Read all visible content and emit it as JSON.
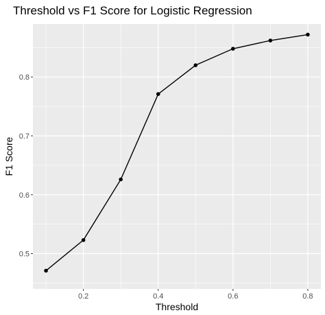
{
  "chart_data": {
    "type": "line",
    "title": "Threshold vs F1 Score for Logistic Regression",
    "xlabel": "Threshold",
    "ylabel": "F1 Score",
    "x": [
      0.1,
      0.2,
      0.3,
      0.4,
      0.5,
      0.6,
      0.7,
      0.8
    ],
    "series": [
      {
        "values": [
          0.471,
          0.523,
          0.626,
          0.771,
          0.82,
          0.848,
          0.862,
          0.872
        ]
      }
    ],
    "xlim": [
      0.065,
      0.835
    ],
    "ylim": [
      0.44,
      0.89
    ],
    "x_ticks": [
      0.2,
      0.4,
      0.6,
      0.8
    ],
    "x_tick_labels": [
      "0.2",
      "0.4",
      "0.6",
      "0.8"
    ],
    "y_ticks": [
      0.5,
      0.6,
      0.7,
      0.8
    ],
    "y_tick_labels": [
      "0.5",
      "0.6",
      "0.7",
      "0.8"
    ],
    "x_minor_ticks": [
      0.1,
      0.3,
      0.5,
      0.7
    ],
    "y_minor_ticks": [
      0.45,
      0.55,
      0.65,
      0.75,
      0.85
    ],
    "grid": true,
    "panel_background": "#ebebeb",
    "gridline_color": "#ffffff",
    "line_color": "#000000",
    "point_color": "#000000"
  }
}
